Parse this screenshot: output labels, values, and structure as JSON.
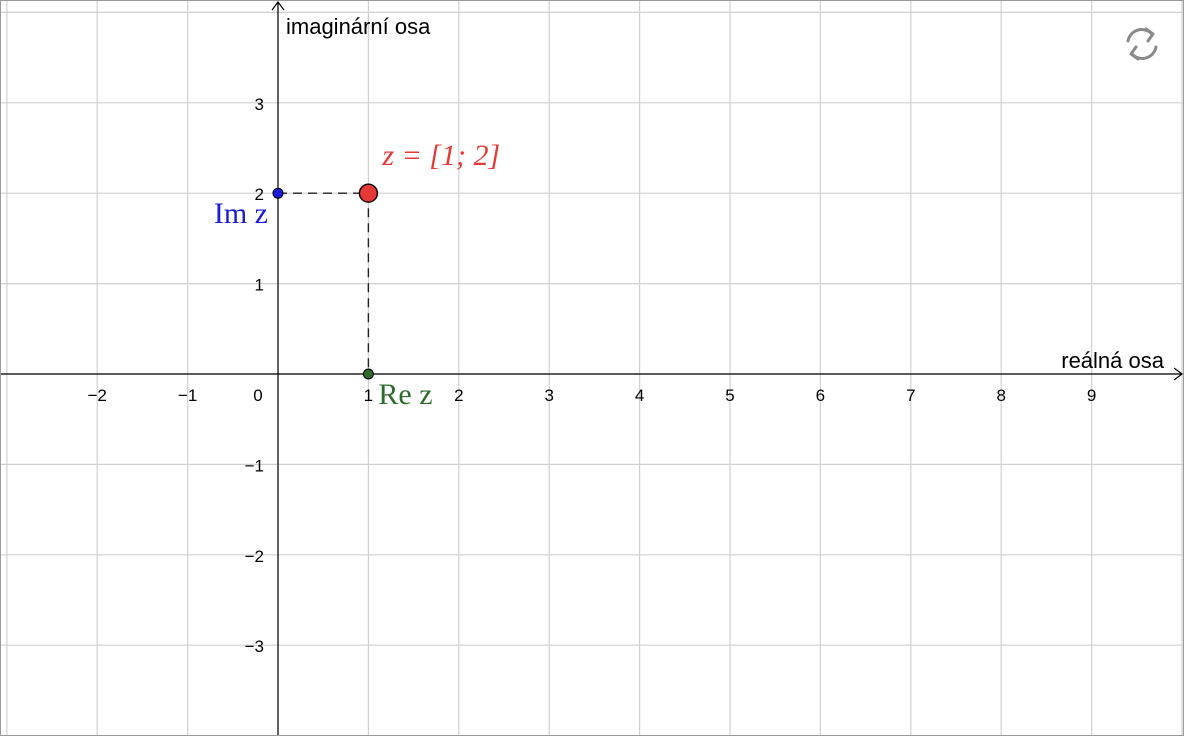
{
  "axes": {
    "x_label": "reálná osa",
    "y_label": "imaginární osa",
    "x_ticks": [
      "−2",
      "−1",
      "0",
      "1",
      "2",
      "3",
      "4",
      "5",
      "6",
      "7",
      "8",
      "9"
    ],
    "y_ticks": [
      "3",
      "2",
      "1",
      "−1",
      "−2",
      "−3"
    ]
  },
  "points": {
    "z": {
      "label": "z = [1; 2]",
      "x": 1,
      "y": 2,
      "color": "#e53935"
    },
    "im": {
      "label": "Im z",
      "x": 0,
      "y": 2,
      "color": "#1a1adb"
    },
    "re": {
      "label": "Re z",
      "x": 1,
      "y": 0,
      "color": "#2e6b2e"
    }
  },
  "grid": true,
  "refresh_icon": "refresh-icon"
}
